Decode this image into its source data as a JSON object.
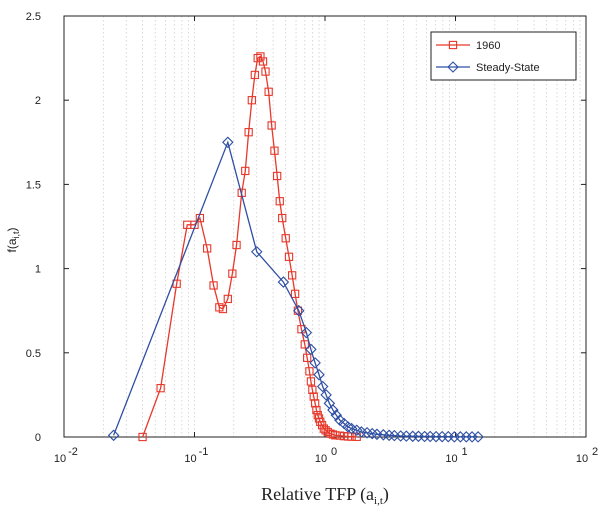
{
  "chart_data": {
    "type": "line",
    "xscale": "log",
    "xlabel": "Relative TFP (a",
    "xlabel_sub": "i,t",
    "xlabel_close": ")",
    "ylabel": "f(a",
    "ylabel_sub": "i,t",
    "ylabel_close": ")",
    "xlim": [
      0.01,
      100
    ],
    "ylim": [
      0,
      2.5
    ],
    "x_ticks": [
      {
        "base": "10",
        "exp": "-2"
      },
      {
        "base": "10",
        "exp": "-1"
      },
      {
        "base": "10",
        "exp": "0"
      },
      {
        "base": "10",
        "exp": "1"
      },
      {
        "base": "10",
        "exp": "2"
      }
    ],
    "y_ticks": [
      "0",
      "0.5",
      "1",
      "1.5",
      "2",
      "2.5"
    ],
    "grid": "dotted, x minor",
    "legend_position": "top-right",
    "series": [
      {
        "name": "1960",
        "color": "#e8382b",
        "marker": "square",
        "x": [
          0.04,
          0.055,
          0.073,
          0.088,
          0.1,
          0.11,
          0.125,
          0.14,
          0.155,
          0.165,
          0.18,
          0.195,
          0.21,
          0.23,
          0.245,
          0.26,
          0.275,
          0.29,
          0.305,
          0.32,
          0.335,
          0.35,
          0.37,
          0.39,
          0.41,
          0.43,
          0.45,
          0.47,
          0.5,
          0.53,
          0.56,
          0.59,
          0.62,
          0.66,
          0.7,
          0.73,
          0.76,
          0.78,
          0.8,
          0.82,
          0.84,
          0.86,
          0.88,
          0.9,
          0.92,
          0.95,
          0.98,
          1.01,
          1.05,
          1.1,
          1.15,
          1.2,
          1.3,
          1.4,
          1.5,
          1.6,
          1.75
        ],
        "y": [
          0.0,
          0.29,
          0.91,
          1.26,
          1.26,
          1.3,
          1.12,
          0.9,
          0.77,
          0.76,
          0.82,
          0.97,
          1.14,
          1.45,
          1.58,
          1.81,
          2.0,
          2.15,
          2.25,
          2.26,
          2.23,
          2.17,
          2.05,
          1.85,
          1.7,
          1.55,
          1.4,
          1.3,
          1.18,
          1.07,
          0.96,
          0.85,
          0.75,
          0.64,
          0.55,
          0.47,
          0.39,
          0.33,
          0.28,
          0.24,
          0.2,
          0.16,
          0.13,
          0.11,
          0.09,
          0.07,
          0.05,
          0.04,
          0.03,
          0.02,
          0.015,
          0.01,
          0.008,
          0.005,
          0.003,
          0.002,
          0.001
        ]
      },
      {
        "name": "Steady-State",
        "color": "#2e4fa3",
        "marker": "diamond",
        "x": [
          0.024,
          0.18,
          0.3,
          0.48,
          0.63,
          0.72,
          0.78,
          0.84,
          0.9,
          0.96,
          1.02,
          1.08,
          1.15,
          1.22,
          1.3,
          1.4,
          1.5,
          1.6,
          1.75,
          1.9,
          2.1,
          2.3,
          2.5,
          2.8,
          3.1,
          3.4,
          3.8,
          4.2,
          4.7,
          5.2,
          5.8,
          6.4,
          7.1,
          7.9,
          8.8,
          9.8,
          10.9,
          12.1,
          13.4,
          14.9
        ],
        "y": [
          0.01,
          1.75,
          1.1,
          0.92,
          0.75,
          0.62,
          0.52,
          0.44,
          0.37,
          0.3,
          0.25,
          0.2,
          0.16,
          0.13,
          0.1,
          0.08,
          0.06,
          0.05,
          0.04,
          0.03,
          0.025,
          0.02,
          0.016,
          0.013,
          0.01,
          0.008,
          0.006,
          0.005,
          0.004,
          0.004,
          0.003,
          0.003,
          0.002,
          0.002,
          0.002,
          0.001,
          0.001,
          0.001,
          0.001,
          0.001
        ]
      }
    ]
  }
}
